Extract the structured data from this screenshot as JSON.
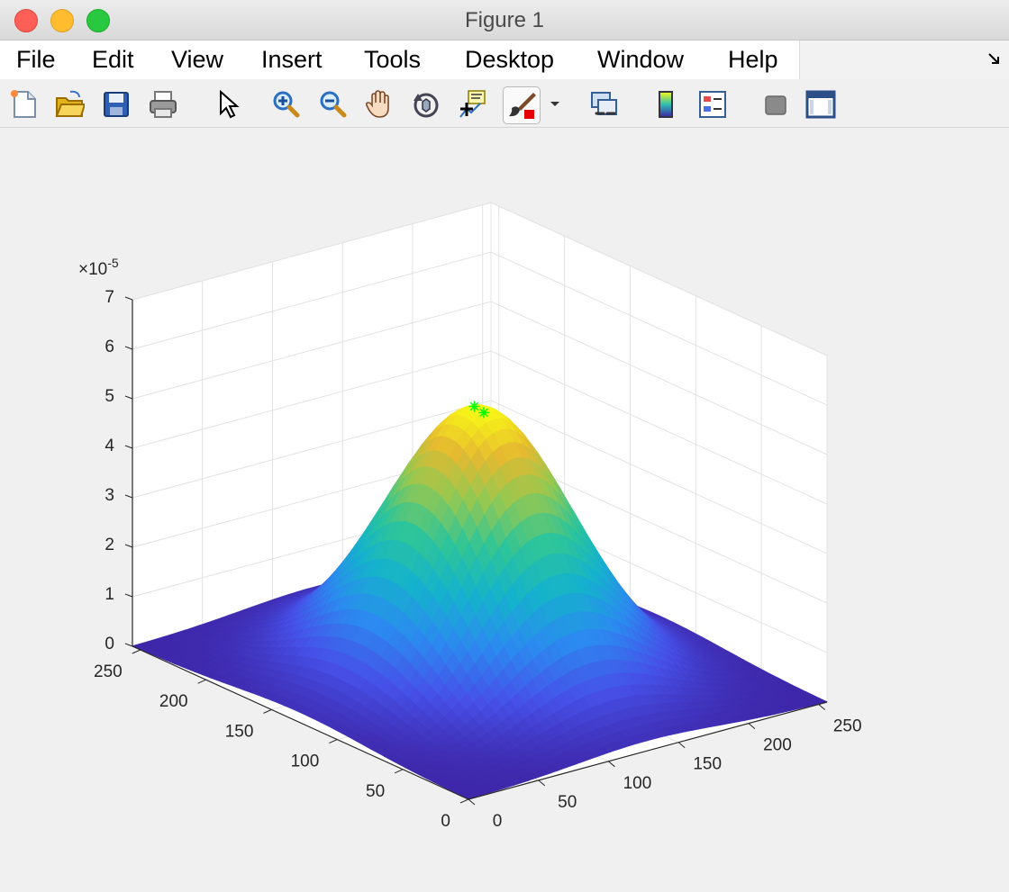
{
  "window": {
    "title": "Figure 1"
  },
  "menu": {
    "items": [
      "File",
      "Edit",
      "View",
      "Insert",
      "Tools",
      "Desktop",
      "Window",
      "Help"
    ]
  },
  "toolbar": {
    "icons": [
      "new-figure-icon",
      "open-file-icon",
      "save-icon",
      "print-icon",
      "select-cursor-icon",
      "zoom-in-icon",
      "zoom-out-icon",
      "pan-hand-icon",
      "rotate-3d-icon",
      "data-cursor-icon",
      "brush-icon",
      "brush-dropdown-icon",
      "link-plot-icon",
      "colorbar-icon",
      "legend-icon",
      "hide-plot-tools-icon",
      "show-plot-tools-icon"
    ]
  },
  "chart_data": {
    "type": "surface",
    "title": "",
    "xlabel": "",
    "ylabel": "",
    "zlabel": "",
    "x_ticks": [
      "0",
      "50",
      "100",
      "150",
      "200",
      "250"
    ],
    "y_ticks": [
      "0",
      "50",
      "100",
      "150",
      "200",
      "250"
    ],
    "z_ticks": [
      "0",
      "1",
      "2",
      "3",
      "4",
      "5",
      "6",
      "7"
    ],
    "z_exponent_label": "×10",
    "z_exponent": "-5",
    "xlim": [
      0,
      256
    ],
    "ylim": [
      0,
      256
    ],
    "zlim": [
      0,
      7e-05
    ],
    "grid": true,
    "colormap": "parula",
    "surface": {
      "peak_x": 128,
      "peak_y": 128,
      "peak_z": 5.4e-05,
      "sigma": 50
    },
    "markers": [
      {
        "x": 126,
        "y": 130,
        "z": 5.4e-05,
        "symbol": "*",
        "color": "#00ff00"
      },
      {
        "x": 129,
        "y": 126,
        "z": 5.3e-05,
        "symbol": "*",
        "color": "#00ff00"
      }
    ]
  }
}
